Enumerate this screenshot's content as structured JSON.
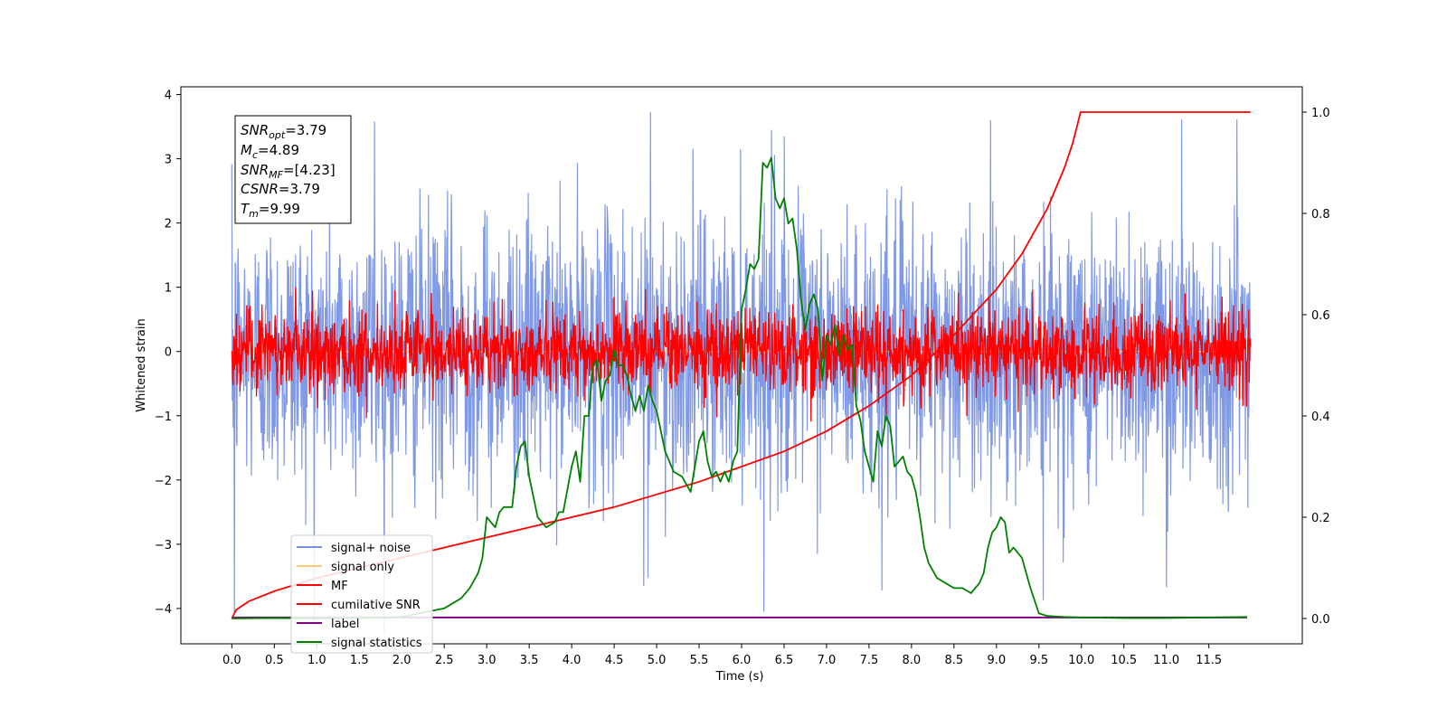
{
  "chart_data": {
    "type": "line",
    "xlabel": "Time (s)",
    "ylabel": "Whitened strain",
    "xlim": [
      -0.6,
      12.6
    ],
    "ylim": [
      -4.55,
      4.12
    ],
    "y2lim": [
      -0.05,
      1.05
    ],
    "x_tick_step": 0.5,
    "x_ticks_range": [
      0.0,
      11.5
    ],
    "y_ticks": [
      -4,
      -3,
      -2,
      -1,
      0,
      1,
      2,
      3,
      4
    ],
    "y_tick_labels": [
      "−4",
      "−3",
      "−2",
      "−1",
      "0",
      "1",
      "2",
      "3",
      "4"
    ],
    "y2_ticks": [
      0.0,
      0.2,
      0.4,
      0.6,
      0.8,
      1.0
    ],
    "y2_tick_labels": [
      "0.0",
      "0.2",
      "0.4",
      "0.6",
      "0.8",
      "1.0"
    ],
    "annotations": {
      "snr_opt": {
        "base": "SNR",
        "sub": "opt",
        "value": "=3.79"
      },
      "mc": {
        "base": "M",
        "sub": "c",
        "value": "=4.89"
      },
      "snr_mf": {
        "base": "SNR",
        "sub": "MF",
        "value": "=[4.23]"
      },
      "csnr": {
        "base": "CSNR",
        "sub": "",
        "value": "=3.79"
      },
      "tm": {
        "base": "T",
        "sub": "m",
        "value": "=9.99"
      }
    },
    "legend_position": "lower-left",
    "colors": {
      "signal_noise": "#7893e6",
      "signal_only": "#ffcb7a",
      "mf": "#ff0000",
      "cum_snr": "#ff0000",
      "label": "#800080",
      "stats": "#008000"
    },
    "series": [
      {
        "name": "signal+ noise",
        "axis": "left",
        "style": "noise",
        "description_x_range": [
          0.0,
          11.99
        ],
        "envelope": 1.05,
        "peaks": [
          {
            "x": 4.93,
            "y": 3.73
          },
          {
            "x": 6.35,
            "y": 3.45
          },
          {
            "x": 1.68,
            "y": 3.58
          },
          {
            "x": 11.18,
            "y": 3.61
          },
          {
            "x": 11.83,
            "y": 3.61
          },
          {
            "x": 4.9,
            "y": -3.52
          },
          {
            "x": 0.03,
            "y": -4.1
          },
          {
            "x": 9.55,
            "y": -3.87
          },
          {
            "x": 7.65,
            "y": -3.72
          },
          {
            "x": 4.85,
            "y": -3.65
          },
          {
            "x": 11.0,
            "y": -3.67
          },
          {
            "x": 6.5,
            "y": 3.35
          }
        ]
      },
      {
        "name": "signal only",
        "axis": "left",
        "style": "flat",
        "x": [
          0.0,
          11.99
        ],
        "y": [
          0.0,
          0.0
        ]
      },
      {
        "name": "MF",
        "axis": "left",
        "style": "noise",
        "description_x_range": [
          0.0,
          11.99
        ],
        "envelope": 0.32,
        "peaks": [
          {
            "x": 0.75,
            "y": 1.0
          },
          {
            "x": 1.92,
            "y": 0.95
          },
          {
            "x": 2.35,
            "y": 0.91
          },
          {
            "x": 4.5,
            "y": 0.85
          },
          {
            "x": 5.12,
            "y": 0.7
          },
          {
            "x": 5.48,
            "y": 0.78
          },
          {
            "x": 7.6,
            "y": 0.73
          },
          {
            "x": 0.1,
            "y": -0.38
          }
        ]
      },
      {
        "name": "cumilative SNR",
        "axis": "right",
        "style": "line",
        "x": [
          0.0,
          0.05,
          0.2,
          0.5,
          1.0,
          1.5,
          2.0,
          2.5,
          3.0,
          3.5,
          4.0,
          4.5,
          5.0,
          5.5,
          6.0,
          6.5,
          7.0,
          7.5,
          8.0,
          8.5,
          9.0,
          9.3,
          9.6,
          9.8,
          9.9,
          9.99,
          10.05,
          11.99
        ],
        "y": [
          0.0,
          0.017,
          0.034,
          0.054,
          0.08,
          0.1,
          0.12,
          0.14,
          0.16,
          0.18,
          0.2,
          0.22,
          0.245,
          0.27,
          0.3,
          0.33,
          0.37,
          0.42,
          0.48,
          0.56,
          0.65,
          0.72,
          0.81,
          0.89,
          0.94,
          1.0,
          1.0,
          1.0
        ]
      },
      {
        "name": "label",
        "axis": "right",
        "style": "line",
        "x": [
          0.0,
          11.95
        ],
        "y": [
          0.002,
          0.002
        ]
      },
      {
        "name": "signal statistics",
        "axis": "right",
        "style": "line",
        "x": [
          0.0,
          0.5,
          1.0,
          1.5,
          2.0,
          2.2,
          2.35,
          2.5,
          2.6,
          2.7,
          2.8,
          2.9,
          2.95,
          3.0,
          3.05,
          3.1,
          3.15,
          3.2,
          3.3,
          3.35,
          3.4,
          3.45,
          3.5,
          3.6,
          3.7,
          3.8,
          3.85,
          3.9,
          4.0,
          4.05,
          4.1,
          4.15,
          4.2,
          4.25,
          4.3,
          4.35,
          4.4,
          4.45,
          4.5,
          4.55,
          4.6,
          4.65,
          4.7,
          4.75,
          4.8,
          4.85,
          4.9,
          4.95,
          5.0,
          5.1,
          5.2,
          5.3,
          5.4,
          5.45,
          5.5,
          5.55,
          5.6,
          5.65,
          5.7,
          5.75,
          5.8,
          5.85,
          5.9,
          5.95,
          6.0,
          6.05,
          6.1,
          6.15,
          6.2,
          6.25,
          6.3,
          6.35,
          6.4,
          6.45,
          6.5,
          6.55,
          6.6,
          6.65,
          6.7,
          6.75,
          6.8,
          6.85,
          6.9,
          6.95,
          7.0,
          7.05,
          7.1,
          7.15,
          7.2,
          7.25,
          7.3,
          7.35,
          7.4,
          7.45,
          7.5,
          7.55,
          7.6,
          7.65,
          7.7,
          7.75,
          7.8,
          7.85,
          7.9,
          7.95,
          8.0,
          8.05,
          8.1,
          8.15,
          8.2,
          8.3,
          8.4,
          8.5,
          8.6,
          8.7,
          8.8,
          8.85,
          8.9,
          8.95,
          9.0,
          9.05,
          9.1,
          9.15,
          9.2,
          9.25,
          9.3,
          9.35,
          9.4,
          9.5,
          9.6,
          9.7,
          9.8,
          10.0,
          10.5,
          11.0,
          11.5,
          11.95
        ],
        "y": [
          0.0,
          0.001,
          0.0,
          0.001,
          0.003,
          0.01,
          0.015,
          0.02,
          0.03,
          0.04,
          0.06,
          0.09,
          0.12,
          0.2,
          0.19,
          0.18,
          0.21,
          0.22,
          0.22,
          0.3,
          0.34,
          0.35,
          0.28,
          0.2,
          0.18,
          0.19,
          0.21,
          0.21,
          0.3,
          0.33,
          0.27,
          0.4,
          0.4,
          0.5,
          0.51,
          0.43,
          0.47,
          0.48,
          0.53,
          0.5,
          0.5,
          0.48,
          0.44,
          0.41,
          0.44,
          0.41,
          0.46,
          0.43,
          0.41,
          0.33,
          0.29,
          0.28,
          0.25,
          0.3,
          0.35,
          0.37,
          0.31,
          0.28,
          0.29,
          0.27,
          0.29,
          0.27,
          0.31,
          0.33,
          0.61,
          0.65,
          0.7,
          0.69,
          0.71,
          0.9,
          0.89,
          0.91,
          0.83,
          0.81,
          0.83,
          0.78,
          0.79,
          0.73,
          0.63,
          0.57,
          0.62,
          0.64,
          0.61,
          0.47,
          0.56,
          0.54,
          0.58,
          0.52,
          0.56,
          0.53,
          0.54,
          0.42,
          0.39,
          0.33,
          0.3,
          0.27,
          0.37,
          0.34,
          0.4,
          0.38,
          0.3,
          0.31,
          0.32,
          0.29,
          0.28,
          0.25,
          0.2,
          0.14,
          0.11,
          0.08,
          0.07,
          0.06,
          0.06,
          0.05,
          0.07,
          0.09,
          0.14,
          0.17,
          0.18,
          0.2,
          0.19,
          0.13,
          0.14,
          0.13,
          0.12,
          0.09,
          0.06,
          0.01,
          0.005,
          0.004,
          0.003,
          0.002,
          0.001,
          0.001,
          0.002,
          0.003
        ]
      }
    ]
  }
}
